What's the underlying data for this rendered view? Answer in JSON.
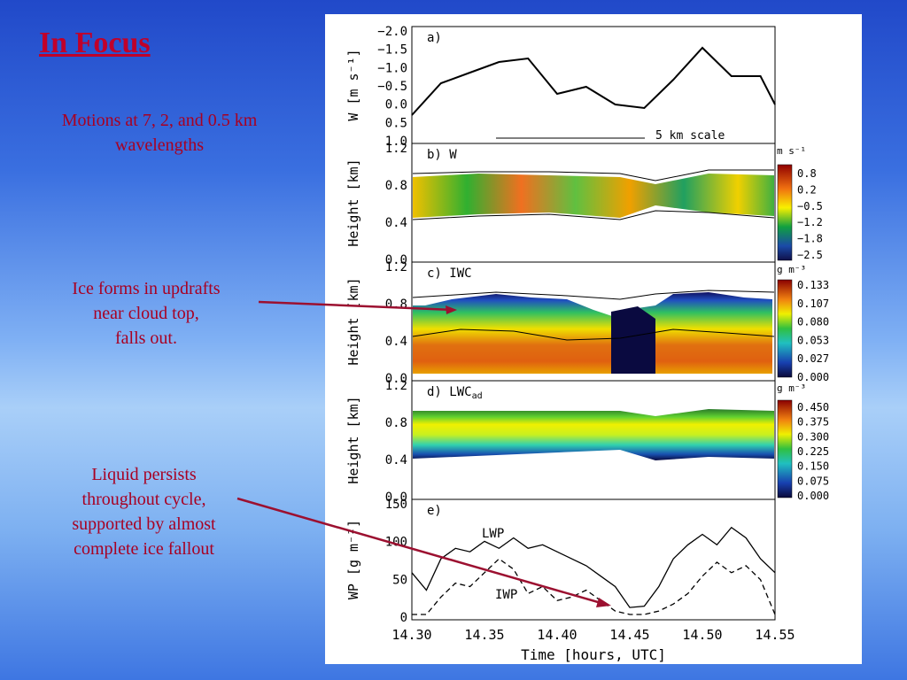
{
  "slide": {
    "title": "In Focus",
    "note1": "Motions at 7, 2, and 0.5 km wavelengths",
    "note2_lines": [
      "Ice forms in updrafts",
      "near cloud top,",
      "falls out."
    ],
    "note3_lines": [
      "Liquid persists",
      "throughout cycle,",
      "supported by almost",
      "complete ice fallout"
    ],
    "accent_color": "#c0002a",
    "arrow_color": "#9c1030"
  },
  "figure": {
    "xlabel": "Time [hours, UTC]",
    "xticks": [
      "14.30",
      "14.35",
      "14.40",
      "14.45",
      "14.50",
      "14.55"
    ],
    "panels": [
      {
        "id": "a",
        "label": "a)",
        "ylabel": "W [m s⁻¹]",
        "yticks": [
          "−2.0",
          "−1.5",
          "−1.0",
          "−0.5",
          "0.0",
          "0.5",
          "1.0"
        ],
        "scale_label": "5 km scale"
      },
      {
        "id": "b",
        "label": "b)  W",
        "ylabel": "Height [km]",
        "yticks": [
          "1.2",
          "0.8",
          "0.4",
          "0.0"
        ],
        "cbar_unit": "m s⁻¹",
        "cbar_ticks": [
          "0.8",
          "0.2",
          "−0.5",
          "−1.2",
          "−1.8",
          "−2.5"
        ]
      },
      {
        "id": "c",
        "label": "c)  IWC",
        "ylabel": "Height [km]",
        "yticks": [
          "1.2",
          "0.8",
          "0.4",
          "0.0"
        ],
        "cbar_unit": "g m⁻³",
        "cbar_ticks": [
          "0.133",
          "0.107",
          "0.080",
          "0.053",
          "0.027",
          "0.000"
        ]
      },
      {
        "id": "d",
        "label": "d)  LWC",
        "label_sub": "ad",
        "ylabel": "Height [km]",
        "yticks": [
          "1.2",
          "0.8",
          "0.4",
          "0.0"
        ],
        "cbar_unit": "g m⁻³",
        "cbar_ticks": [
          "0.450",
          "0.375",
          "0.300",
          "0.225",
          "0.150",
          "0.075",
          "0.000"
        ]
      },
      {
        "id": "e",
        "label": "e)",
        "ylabel": "WP [g m⁻²]",
        "yticks": [
          "150",
          "100",
          "50",
          "0"
        ],
        "series": [
          "LWP",
          "IWP"
        ]
      }
    ]
  },
  "chart_data": [
    {
      "type": "line",
      "title": "a)",
      "ylabel": "W [m s⁻¹]",
      "xlabel": "Time [hours, UTC]",
      "xlim": [
        14.3,
        14.55
      ],
      "ylim": [
        1.0,
        -2.0
      ],
      "series": [
        {
          "values_x": [
            14.3,
            14.32,
            14.34,
            14.36,
            14.38,
            14.4,
            14.42,
            14.44,
            14.46,
            14.48,
            14.5,
            14.52,
            14.54,
            14.55
          ],
          "values_y": [
            0.3,
            -0.6,
            -0.9,
            -1.2,
            -1.3,
            -0.3,
            -0.5,
            0.0,
            0.1,
            -0.7,
            -1.6,
            -0.8,
            -0.8,
            0.0
          ]
        }
      ]
    },
    {
      "type": "heatmap",
      "title": "b) W",
      "ylabel": "Height [km]",
      "ylim": [
        0,
        1.2
      ],
      "zlim": [
        -2.5,
        0.8
      ]
    },
    {
      "type": "heatmap",
      "title": "c) IWC",
      "ylabel": "Height [km]",
      "ylim": [
        0,
        1.2
      ],
      "zlim": [
        0.0,
        0.133
      ]
    },
    {
      "type": "heatmap",
      "title": "d) LWCad",
      "ylabel": "Height [km]",
      "ylim": [
        0,
        1.2
      ],
      "zlim": [
        0.0,
        0.45
      ]
    },
    {
      "type": "line",
      "title": "e)",
      "ylabel": "WP [g m⁻²]",
      "xlabel": "Time [hours, UTC]",
      "xlim": [
        14.3,
        14.55
      ],
      "ylim": [
        0,
        150
      ],
      "x": [
        14.3,
        14.31,
        14.32,
        14.33,
        14.34,
        14.35,
        14.36,
        14.37,
        14.38,
        14.39,
        14.4,
        14.41,
        14.42,
        14.43,
        14.44,
        14.45,
        14.46,
        14.47,
        14.48,
        14.49,
        14.5,
        14.51,
        14.52,
        14.53,
        14.54,
        14.55
      ],
      "series": [
        {
          "name": "LWP",
          "values": [
            60,
            35,
            80,
            95,
            90,
            105,
            95,
            110,
            95,
            100,
            90,
            80,
            70,
            55,
            40,
            10,
            12,
            40,
            80,
            100,
            115,
            100,
            125,
            110,
            80,
            60
          ]
        },
        {
          "name": "IWP",
          "values": [
            0,
            0,
            25,
            45,
            40,
            60,
            80,
            65,
            30,
            40,
            20,
            25,
            35,
            20,
            5,
            0,
            0,
            5,
            15,
            30,
            55,
            75,
            60,
            70,
            50,
            0
          ]
        }
      ]
    }
  ]
}
